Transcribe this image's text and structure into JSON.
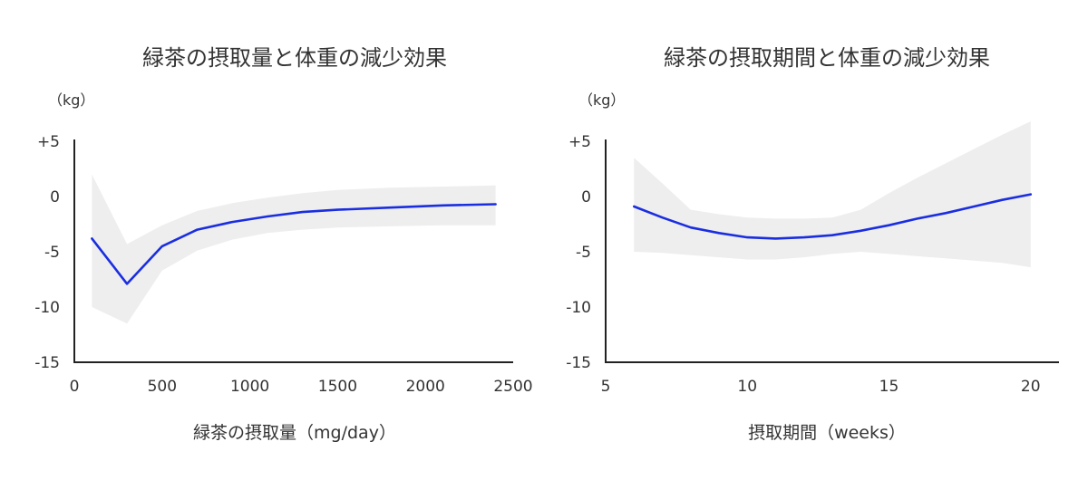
{
  "chart_data": [
    {
      "type": "line",
      "title": "緑茶の摂取量と体重の減少効果",
      "unit": "（kg）",
      "xlabel": "緑茶の摂取量（mg/day）",
      "xlim": [
        0,
        2500
      ],
      "ylim": [
        -15,
        5
      ],
      "x_ticks": [
        "0",
        "500",
        "1000",
        "1500",
        "2000",
        "2500"
      ],
      "x_tick_values": [
        0,
        500,
        1000,
        1500,
        2000,
        2500
      ],
      "y_ticks": [
        "+5",
        "0",
        "-5",
        "-10",
        "-15"
      ],
      "y_tick_values": [
        5,
        0,
        -5,
        -10,
        -15
      ],
      "band_color": "#eeeeee",
      "line_color": "#1a2ee0",
      "series": [
        {
          "x": [
            100,
            300,
            500,
            700,
            900,
            1100,
            1300,
            1500,
            1800,
            2100,
            2400
          ],
          "y": [
            -3.8,
            -7.9,
            -4.5,
            -3.0,
            -2.3,
            -1.8,
            -1.4,
            -1.2,
            -1.0,
            -0.8,
            -0.7
          ],
          "upper": [
            2.0,
            -4.3,
            -2.6,
            -1.3,
            -0.6,
            -0.1,
            0.3,
            0.6,
            0.8,
            0.9,
            1.0
          ],
          "lower": [
            -10.0,
            -11.5,
            -6.7,
            -4.9,
            -3.9,
            -3.3,
            -3.0,
            -2.8,
            -2.7,
            -2.6,
            -2.6
          ]
        }
      ]
    },
    {
      "type": "line",
      "title": "緑茶の摂取期間と体重の減少効果",
      "unit": "（kg）",
      "xlabel": "摂取期間（weeks）",
      "xlim": [
        5,
        21
      ],
      "ylim": [
        -15,
        5
      ],
      "x_ticks": [
        "5",
        "10",
        "15",
        "20"
      ],
      "x_tick_values": [
        5,
        10,
        15,
        20
      ],
      "y_ticks": [
        "+5",
        "0",
        "-5",
        "-10",
        "-15"
      ],
      "y_tick_values": [
        5,
        0,
        -5,
        -10,
        -15
      ],
      "band_color": "#eeeeee",
      "line_color": "#1a2ee0",
      "series": [
        {
          "x": [
            6,
            7,
            8,
            9,
            10,
            11,
            12,
            13,
            14,
            15,
            16,
            17,
            18,
            19,
            20
          ],
          "y": [
            -0.9,
            -1.9,
            -2.8,
            -3.3,
            -3.7,
            -3.8,
            -3.7,
            -3.5,
            -3.1,
            -2.6,
            -2.0,
            -1.5,
            -0.9,
            -0.3,
            0.2
          ],
          "upper": [
            3.5,
            1.2,
            -1.2,
            -1.6,
            -1.9,
            -2.0,
            -2.0,
            -1.9,
            -1.2,
            0.3,
            1.7,
            3.0,
            4.3,
            5.6,
            6.8
          ],
          "lower": [
            -5.0,
            -5.1,
            -5.3,
            -5.5,
            -5.7,
            -5.7,
            -5.5,
            -5.2,
            -5.0,
            -5.2,
            -5.4,
            -5.6,
            -5.8,
            -6.0,
            -6.4
          ]
        }
      ]
    }
  ]
}
